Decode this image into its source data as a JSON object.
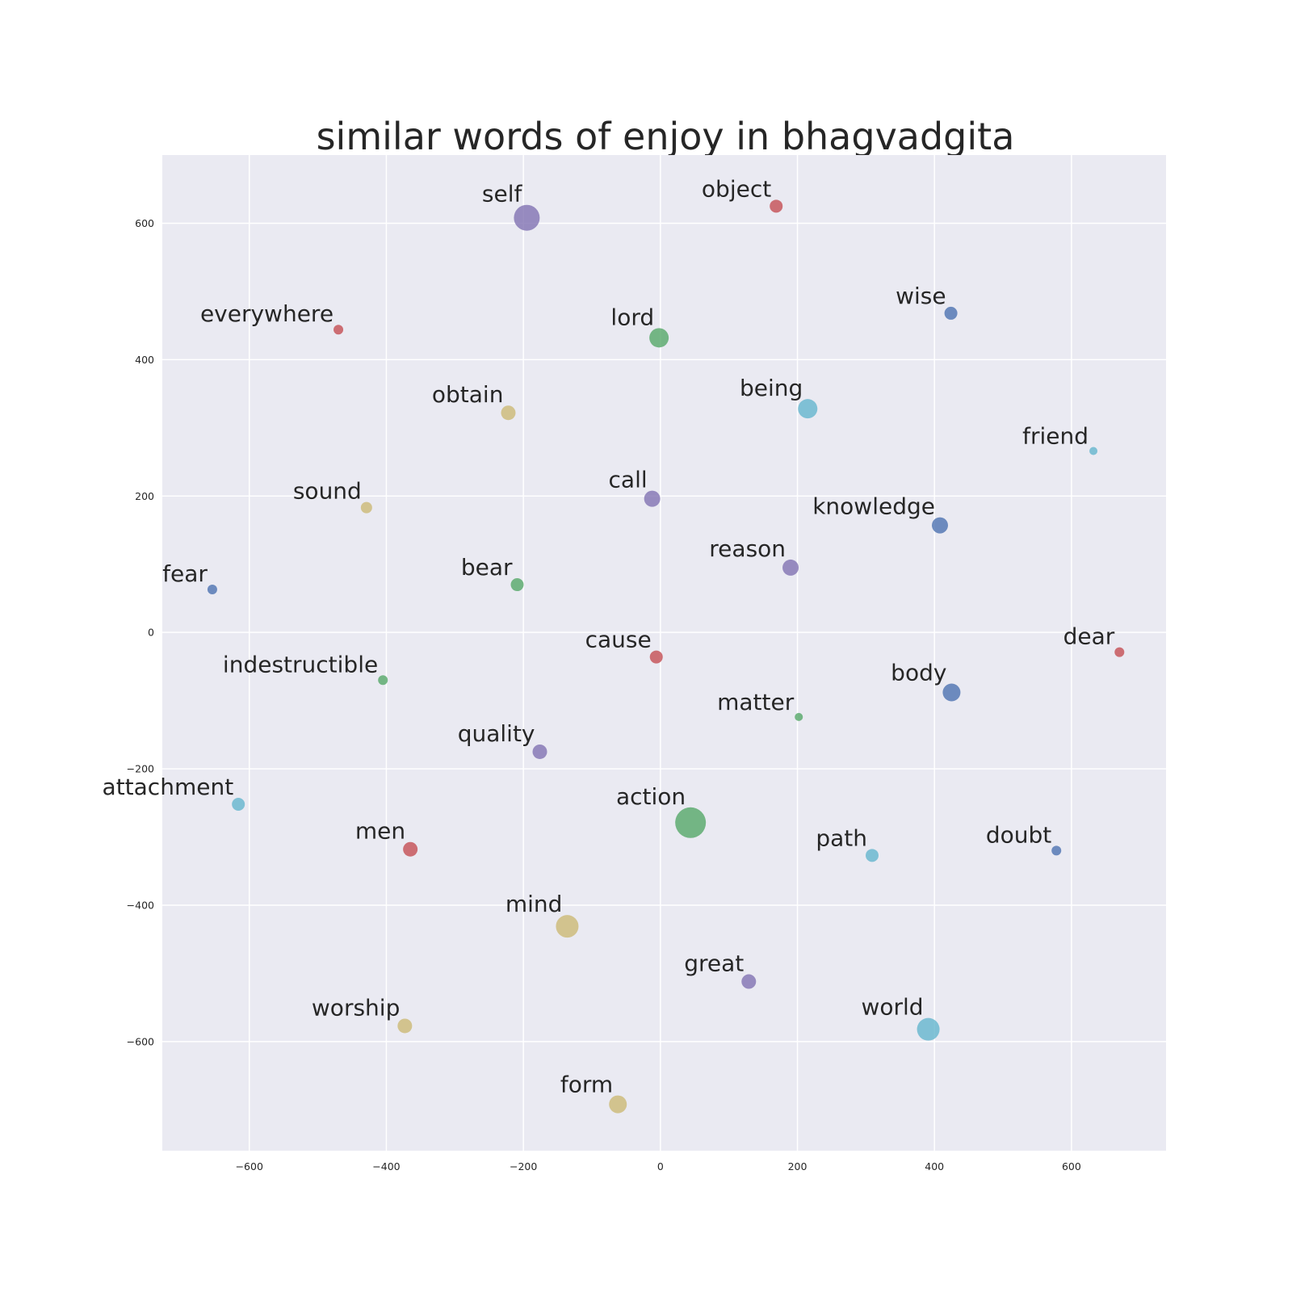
{
  "chart_data": {
    "type": "scatter",
    "title": "similar words of enjoy in bhagvadgita",
    "xlabel": "",
    "ylabel": "",
    "xlim": [
      -727,
      738
    ],
    "ylim": [
      -760,
      700
    ],
    "xticks": [
      -600,
      -400,
      -200,
      0,
      200,
      400,
      600
    ],
    "yticks": [
      600,
      400,
      200,
      0,
      -200,
      -400,
      -600
    ],
    "xtick_labels": [
      "−600",
      "−400",
      "−200",
      "0",
      "200",
      "400",
      "600"
    ],
    "ytick_labels": [
      "600",
      "400",
      "200",
      "0",
      "−200",
      "−400",
      "−600"
    ],
    "grid": true,
    "background": "#eaeaf2",
    "points": [
      {
        "word": "self",
        "x": -195,
        "y": 608,
        "size": 16,
        "color": "#8172b2"
      },
      {
        "word": "object",
        "x": 169,
        "y": 625,
        "size": 8,
        "color": "#c44e52"
      },
      {
        "word": "wise",
        "x": 424,
        "y": 468,
        "size": 8,
        "color": "#4c72b0"
      },
      {
        "word": "everywhere",
        "x": -470,
        "y": 444,
        "size": 6,
        "color": "#c44e52"
      },
      {
        "word": "lord",
        "x": -2,
        "y": 432,
        "size": 12,
        "color": "#55a868"
      },
      {
        "word": "obtain",
        "x": -222,
        "y": 322,
        "size": 9,
        "color": "#ccb974"
      },
      {
        "word": "being",
        "x": 215,
        "y": 328,
        "size": 12,
        "color": "#64b5cd"
      },
      {
        "word": "friend",
        "x": 632,
        "y": 266,
        "size": 5,
        "color": "#64b5cd"
      },
      {
        "word": "sound",
        "x": -429,
        "y": 183,
        "size": 7,
        "color": "#ccb974"
      },
      {
        "word": "call",
        "x": -12,
        "y": 196,
        "size": 10,
        "color": "#8172b2"
      },
      {
        "word": "knowledge",
        "x": 408,
        "y": 157,
        "size": 10,
        "color": "#4c72b0"
      },
      {
        "word": "fear",
        "x": -654,
        "y": 63,
        "size": 6,
        "color": "#4c72b0"
      },
      {
        "word": "bear",
        "x": -209,
        "y": 70,
        "size": 8,
        "color": "#55a868"
      },
      {
        "word": "reason",
        "x": 190,
        "y": 95,
        "size": 10,
        "color": "#8172b2"
      },
      {
        "word": "cause",
        "x": -6,
        "y": -36,
        "size": 8,
        "color": "#c44e52"
      },
      {
        "word": "dear",
        "x": 670,
        "y": -29,
        "size": 6,
        "color": "#c44e52"
      },
      {
        "word": "indestructible",
        "x": -405,
        "y": -70,
        "size": 6,
        "color": "#55a868"
      },
      {
        "word": "body",
        "x": 425,
        "y": -88,
        "size": 11,
        "color": "#4c72b0"
      },
      {
        "word": "matter",
        "x": 202,
        "y": -124,
        "size": 5,
        "color": "#55a868"
      },
      {
        "word": "quality",
        "x": -176,
        "y": -175,
        "size": 9,
        "color": "#8172b2"
      },
      {
        "word": "attachment",
        "x": -616,
        "y": -252,
        "size": 8,
        "color": "#64b5cd"
      },
      {
        "word": "action",
        "x": 44,
        "y": -279,
        "size": 19,
        "color": "#55a868"
      },
      {
        "word": "men",
        "x": -365,
        "y": -318,
        "size": 9,
        "color": "#c44e52"
      },
      {
        "word": "path",
        "x": 309,
        "y": -327,
        "size": 8,
        "color": "#64b5cd"
      },
      {
        "word": "doubt",
        "x": 578,
        "y": -320,
        "size": 6,
        "color": "#4c72b0"
      },
      {
        "word": "mind",
        "x": -136,
        "y": -431,
        "size": 14,
        "color": "#ccb974"
      },
      {
        "word": "great",
        "x": 129,
        "y": -512,
        "size": 9,
        "color": "#8172b2"
      },
      {
        "word": "worship",
        "x": -373,
        "y": -577,
        "size": 9,
        "color": "#ccb974"
      },
      {
        "word": "world",
        "x": 391,
        "y": -582,
        "size": 14,
        "color": "#64b5cd"
      },
      {
        "word": "form",
        "x": -62,
        "y": -692,
        "size": 11,
        "color": "#ccb974"
      }
    ]
  }
}
